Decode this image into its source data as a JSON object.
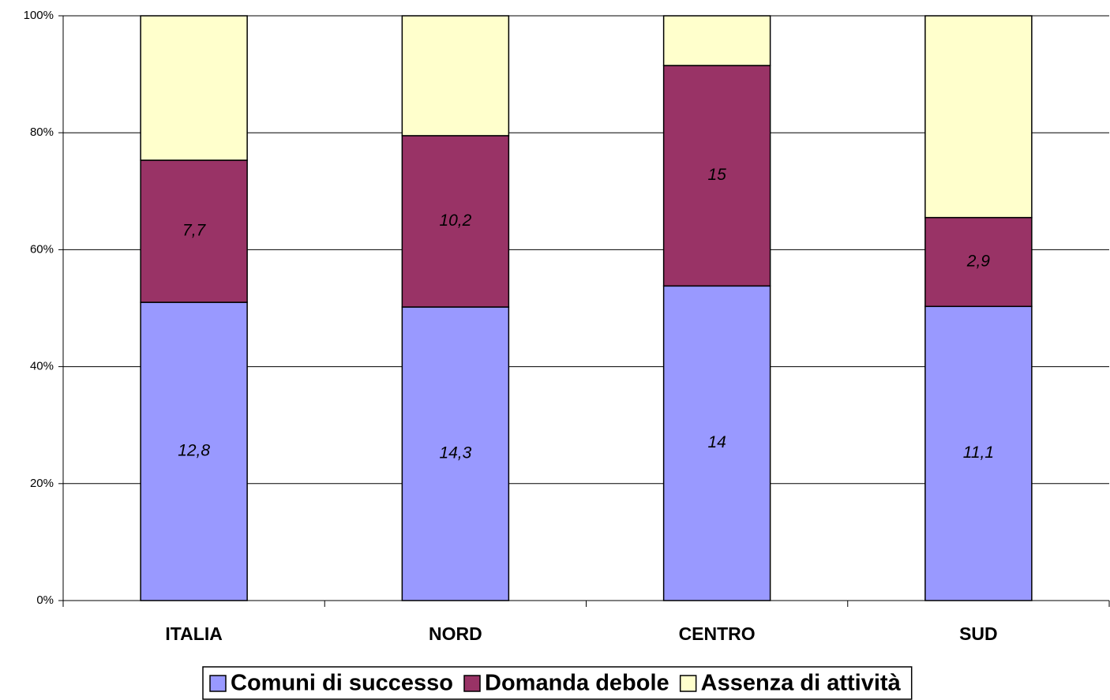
{
  "chart_data": {
    "type": "stacked_bar_percent",
    "categories": [
      "ITALIA",
      "NORD",
      "CENTRO",
      "SUD"
    ],
    "series": [
      {
        "name": "Comuni di successo",
        "color": "#9999ff",
        "values": [
          51.0,
          50.2,
          53.8,
          50.3
        ],
        "labels": [
          "12,8",
          "14,3",
          "14",
          "11,1"
        ]
      },
      {
        "name": "Domanda debole",
        "color": "#993366",
        "values": [
          24.3,
          29.3,
          37.7,
          15.2
        ],
        "labels": [
          "7,7",
          "10,2",
          "15",
          "2,9"
        ]
      },
      {
        "name": "Assenza di attività",
        "color": "#ffffcc",
        "values": [
          24.7,
          20.5,
          8.5,
          34.5
        ]
      }
    ],
    "ylim": [
      0,
      100
    ],
    "yticks": [
      {
        "value": 0,
        "label": "0%"
      },
      {
        "value": 20,
        "label": "20%"
      },
      {
        "value": 40,
        "label": "40%"
      },
      {
        "value": 60,
        "label": "60%"
      },
      {
        "value": 80,
        "label": "80%"
      },
      {
        "value": 100,
        "label": "100%"
      }
    ],
    "grid": true,
    "legend": "bottom"
  }
}
